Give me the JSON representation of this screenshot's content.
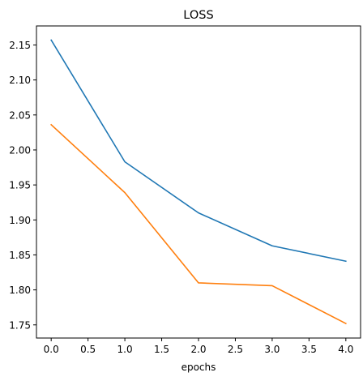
{
  "chart_data": {
    "type": "line",
    "title": "LOSS",
    "xlabel": "epochs",
    "ylabel": "",
    "x": [
      0,
      1,
      2,
      3,
      4
    ],
    "xlim": [
      -0.2,
      4.2
    ],
    "ylim": [
      1.7312,
      2.1772
    ],
    "xticks": [
      0,
      0.5,
      1,
      1.5,
      2,
      2.5,
      3,
      3.5,
      4
    ],
    "xtick_labels": [
      "0.0",
      "0.5",
      "1.0",
      "1.5",
      "2.0",
      "2.5",
      "3.0",
      "3.5",
      "4.0"
    ],
    "yticks": [
      1.75,
      1.8,
      1.85,
      1.9,
      1.95,
      2.0,
      2.05,
      2.1,
      2.15
    ],
    "ytick_labels": [
      "1.75",
      "1.80",
      "1.85",
      "1.90",
      "1.95",
      "2.00",
      "2.05",
      "2.10",
      "2.15"
    ],
    "grid": false,
    "legend": false,
    "series": [
      {
        "values": [
          2.157,
          1.983,
          1.91,
          1.863,
          1.841
        ],
        "color": "#1f77b4"
      },
      {
        "values": [
          2.036,
          1.939,
          1.81,
          1.806,
          1.752
        ],
        "color": "#ff7f0e"
      }
    ]
  }
}
